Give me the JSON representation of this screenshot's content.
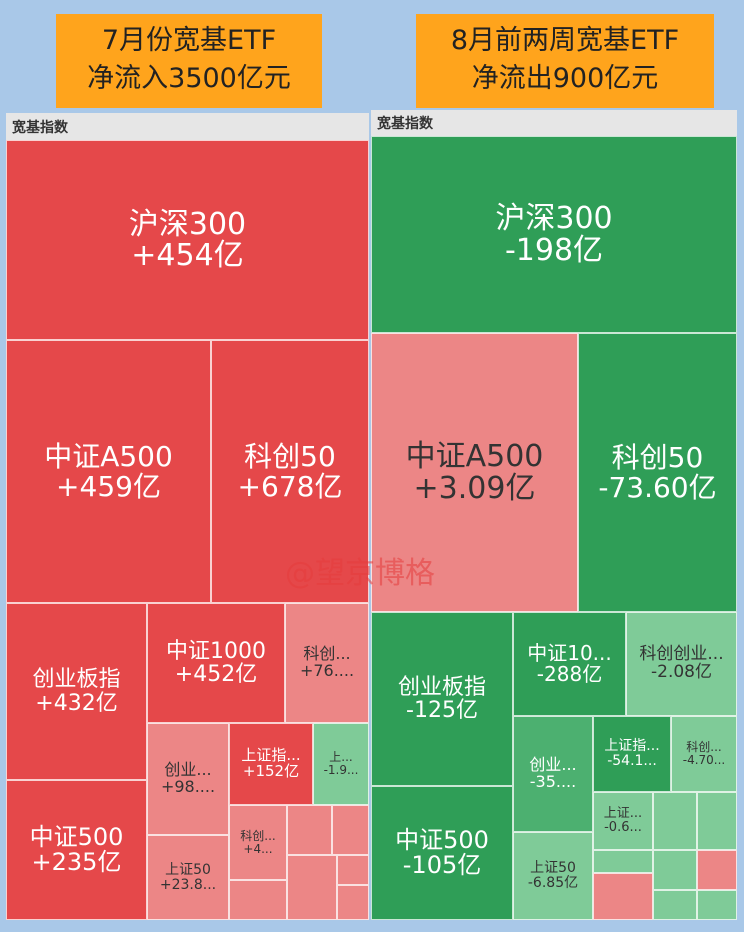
{
  "headers": [
    {
      "lines": [
        "7月份宽基ETF",
        "净流入3500亿元"
      ]
    },
    {
      "lines": [
        "8月前两周宽基ETF",
        "净流出900亿元"
      ]
    }
  ],
  "panels": [
    {
      "title": "宽基指数",
      "tiles": [
        {
          "name": "沪深300",
          "value": "+454亿"
        },
        {
          "name": "中证A500",
          "value": "+459亿"
        },
        {
          "name": "科创50",
          "value": "+678亿"
        },
        {
          "name": "创业板指",
          "value": "+432亿"
        },
        {
          "name": "中证500",
          "value": "+235亿"
        },
        {
          "name": "中证1000",
          "value": "+452亿"
        },
        {
          "name": "科创...",
          "value": "+76...."
        },
        {
          "name": "创业...",
          "value": "+98...."
        },
        {
          "name": "上证50",
          "value": "+23.8..."
        },
        {
          "name": "上证指...",
          "value": "+152亿"
        },
        {
          "name": "上...",
          "value": "-1.9..."
        },
        {
          "name": "科创...",
          "value": "+4..."
        }
      ]
    },
    {
      "title": "宽基指数",
      "tiles": [
        {
          "name": "沪深300",
          "value": "-198亿"
        },
        {
          "name": "中证A500",
          "value": "+3.09亿"
        },
        {
          "name": "科创50",
          "value": "-73.60亿"
        },
        {
          "name": "创业板指",
          "value": "-125亿"
        },
        {
          "name": "中证500",
          "value": "-105亿"
        },
        {
          "name": "中证10...",
          "value": "-288亿"
        },
        {
          "name": "科创创业...",
          "value": "-2.08亿"
        },
        {
          "name": "创业...",
          "value": "-35...."
        },
        {
          "name": "上证50",
          "value": "-6.85亿"
        },
        {
          "name": "上证指...",
          "value": "-54.1..."
        },
        {
          "name": "科创...",
          "value": "-4.70..."
        },
        {
          "name": "上证...",
          "value": "-0.6..."
        }
      ]
    }
  ],
  "watermark": "@望京博格"
}
